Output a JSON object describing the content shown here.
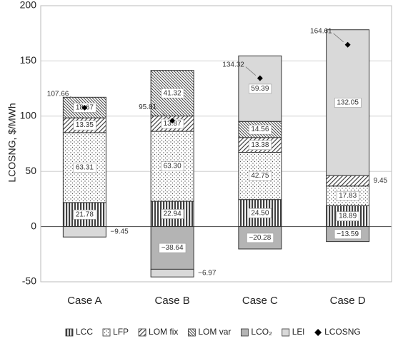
{
  "chart_data": {
    "type": "bar",
    "stacked": true,
    "ylabel": "LCOSNG, $/MWh",
    "categories": [
      "Case A",
      "Case B",
      "Case C",
      "Case D"
    ],
    "ylim": [
      -50,
      200
    ],
    "yticks": [
      -50,
      0,
      50,
      100,
      150,
      200
    ],
    "grid": true,
    "legend": "bottom",
    "series": [
      {
        "name": "LCC",
        "color": "#404040",
        "values": [
          21.78,
          22.94,
          24.5,
          18.89
        ],
        "value_labels": [
          "21.78",
          "22.94",
          "24.50",
          "18.89"
        ]
      },
      {
        "name": "LFP",
        "color": "#555555",
        "values": [
          63.31,
          63.3,
          42.75,
          17.83
        ],
        "value_labels": [
          "63.31",
          "63.30",
          "42.75",
          "17.83"
        ]
      },
      {
        "name": "LOM fix",
        "color": "#444444",
        "values": [
          13.35,
          13.87,
          13.38,
          9.45
        ],
        "value_labels": [
          "13.35",
          "13.87",
          "13.38",
          "9.45"
        ]
      },
      {
        "name": "LOM var",
        "color": "#444444",
        "values": [
          18.67,
          41.32,
          14.56,
          null
        ],
        "value_labels": [
          "18.67",
          "41.32",
          "14.56",
          null
        ]
      },
      {
        "name": "LCO₂",
        "color": "#b4b4b4",
        "values": [
          null,
          -38.64,
          -20.28,
          -13.59
        ],
        "value_labels": [
          null,
          "−38.64",
          "−20.28",
          "−13.59"
        ]
      },
      {
        "name": "LEl",
        "color": "#d9d9d9",
        "values": [
          -9.45,
          -6.97,
          59.39,
          132.05
        ],
        "value_labels": [
          "−9.45",
          "−6.97",
          "59.39",
          "132.05"
        ]
      },
      {
        "name": "LCOSNG",
        "type": "scatter",
        "color": "#000000",
        "values": [
          107.66,
          95.81,
          134.32,
          164.61
        ],
        "value_labels": [
          "107.66",
          "95.81",
          "134.32",
          "164.61"
        ]
      }
    ]
  }
}
